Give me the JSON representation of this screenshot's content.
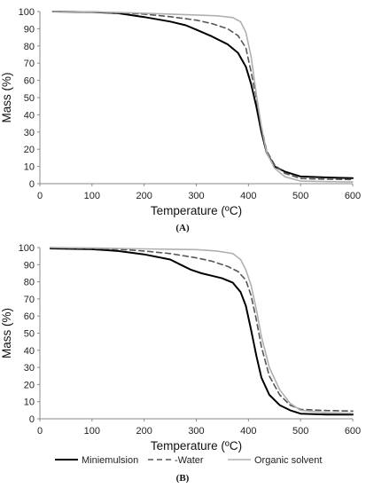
{
  "chart_data": [
    {
      "type": "line",
      "panel_label": "(A)",
      "xlabel": "Temperature (ºC)",
      "ylabel": "Mass (%)",
      "xlim": [
        0,
        600
      ],
      "ylim": [
        0,
        100
      ],
      "x_ticks": [
        0,
        100,
        200,
        300,
        400,
        500,
        600
      ],
      "y_ticks": [
        0,
        10,
        20,
        30,
        40,
        50,
        60,
        70,
        80,
        90,
        100
      ],
      "grid": false,
      "series": [
        {
          "name": "Miniemulsion",
          "color": "#000000",
          "style": "solid",
          "points": [
            [
              25,
              100
            ],
            [
              100,
              99.7
            ],
            [
              150,
              99
            ],
            [
              200,
              96.8
            ],
            [
              250,
              94.2
            ],
            [
              280,
              92
            ],
            [
              300,
              89.5
            ],
            [
              330,
              85.5
            ],
            [
              360,
              81
            ],
            [
              380,
              76
            ],
            [
              395,
              68
            ],
            [
              405,
              58
            ],
            [
              415,
              45
            ],
            [
              425,
              30
            ],
            [
              435,
              18
            ],
            [
              450,
              10
            ],
            [
              470,
              7
            ],
            [
              500,
              4.2
            ],
            [
              550,
              3.6
            ],
            [
              600,
              3.2
            ]
          ]
        },
        {
          "name": "Water",
          "color": "#555555",
          "style": "dashed",
          "points": [
            [
              25,
              100
            ],
            [
              100,
              99.8
            ],
            [
              150,
              99.3
            ],
            [
              200,
              98.5
            ],
            [
              250,
              97
            ],
            [
              300,
              95
            ],
            [
              330,
              93
            ],
            [
              360,
              90
            ],
            [
              380,
              86
            ],
            [
              395,
              79
            ],
            [
              405,
              65
            ],
            [
              415,
              50
            ],
            [
              425,
              33
            ],
            [
              435,
              19
            ],
            [
              450,
              11
            ],
            [
              470,
              6
            ],
            [
              500,
              3
            ],
            [
              550,
              2.6
            ],
            [
              600,
              2.4
            ]
          ]
        },
        {
          "name": "Organic solvent",
          "color": "#b0b0b0",
          "style": "solid",
          "points": [
            [
              25,
              100
            ],
            [
              100,
              99.8
            ],
            [
              150,
              99.5
            ],
            [
              200,
              99
            ],
            [
              250,
              98.5
            ],
            [
              300,
              98
            ],
            [
              340,
              97.5
            ],
            [
              370,
              96.5
            ],
            [
              385,
              94
            ],
            [
              395,
              88
            ],
            [
              405,
              74
            ],
            [
              415,
              52
            ],
            [
              425,
              33
            ],
            [
              435,
              18
            ],
            [
              450,
              9
            ],
            [
              470,
              4
            ],
            [
              500,
              1.5
            ],
            [
              550,
              1.2
            ],
            [
              600,
              1
            ]
          ]
        }
      ]
    },
    {
      "type": "line",
      "panel_label": "(B)",
      "xlabel": "Temperature (ºC)",
      "ylabel": "Mass (%)",
      "xlim": [
        0,
        600
      ],
      "ylim": [
        0,
        100
      ],
      "x_ticks": [
        0,
        100,
        200,
        300,
        400,
        500,
        600
      ],
      "y_ticks": [
        0,
        10,
        20,
        30,
        40,
        50,
        60,
        70,
        80,
        90,
        100
      ],
      "grid": false,
      "legend_position": "bottom",
      "legend_labels": [
        "Miniemulsion",
        "-Water",
        "Organic solvent"
      ],
      "series": [
        {
          "name": "Miniemulsion",
          "color": "#000000",
          "style": "solid",
          "points": [
            [
              20,
              99.5
            ],
            [
              100,
              99
            ],
            [
              150,
              98
            ],
            [
              200,
              96
            ],
            [
              250,
              93
            ],
            [
              270,
              90
            ],
            [
              290,
              87
            ],
            [
              310,
              85
            ],
            [
              330,
              83.5
            ],
            [
              350,
              82
            ],
            [
              370,
              79.5
            ],
            [
              385,
              74
            ],
            [
              395,
              66
            ],
            [
              405,
              52
            ],
            [
              415,
              37
            ],
            [
              425,
              24
            ],
            [
              440,
              14
            ],
            [
              460,
              8
            ],
            [
              480,
              5
            ],
            [
              500,
              3
            ],
            [
              550,
              2.5
            ],
            [
              600,
              2.5
            ]
          ]
        },
        {
          "name": "Water",
          "color": "#555555",
          "style": "dashed",
          "points": [
            [
              20,
              100
            ],
            [
              100,
              99.5
            ],
            [
              150,
              99
            ],
            [
              200,
              98
            ],
            [
              250,
              96.5
            ],
            [
              300,
              94
            ],
            [
              330,
              92
            ],
            [
              360,
              89
            ],
            [
              380,
              86
            ],
            [
              395,
              81
            ],
            [
              405,
              72
            ],
            [
              415,
              58
            ],
            [
              425,
              42
            ],
            [
              440,
              25
            ],
            [
              460,
              14
            ],
            [
              480,
              8
            ],
            [
              500,
              5.5
            ],
            [
              550,
              4.8
            ],
            [
              600,
              4.5
            ]
          ]
        },
        {
          "name": "Organic solvent",
          "color": "#b0b0b0",
          "style": "solid",
          "points": [
            [
              20,
              100
            ],
            [
              100,
              99.8
            ],
            [
              150,
              99.5
            ],
            [
              200,
              99.2
            ],
            [
              250,
              99
            ],
            [
              300,
              98.8
            ],
            [
              340,
              98
            ],
            [
              370,
              96.5
            ],
            [
              385,
              93
            ],
            [
              395,
              87
            ],
            [
              405,
              78
            ],
            [
              415,
              64
            ],
            [
              425,
              48
            ],
            [
              440,
              30
            ],
            [
              460,
              17
            ],
            [
              480,
              9
            ],
            [
              500,
              5
            ],
            [
              550,
              3.5
            ],
            [
              600,
              3.2
            ]
          ]
        }
      ]
    }
  ]
}
